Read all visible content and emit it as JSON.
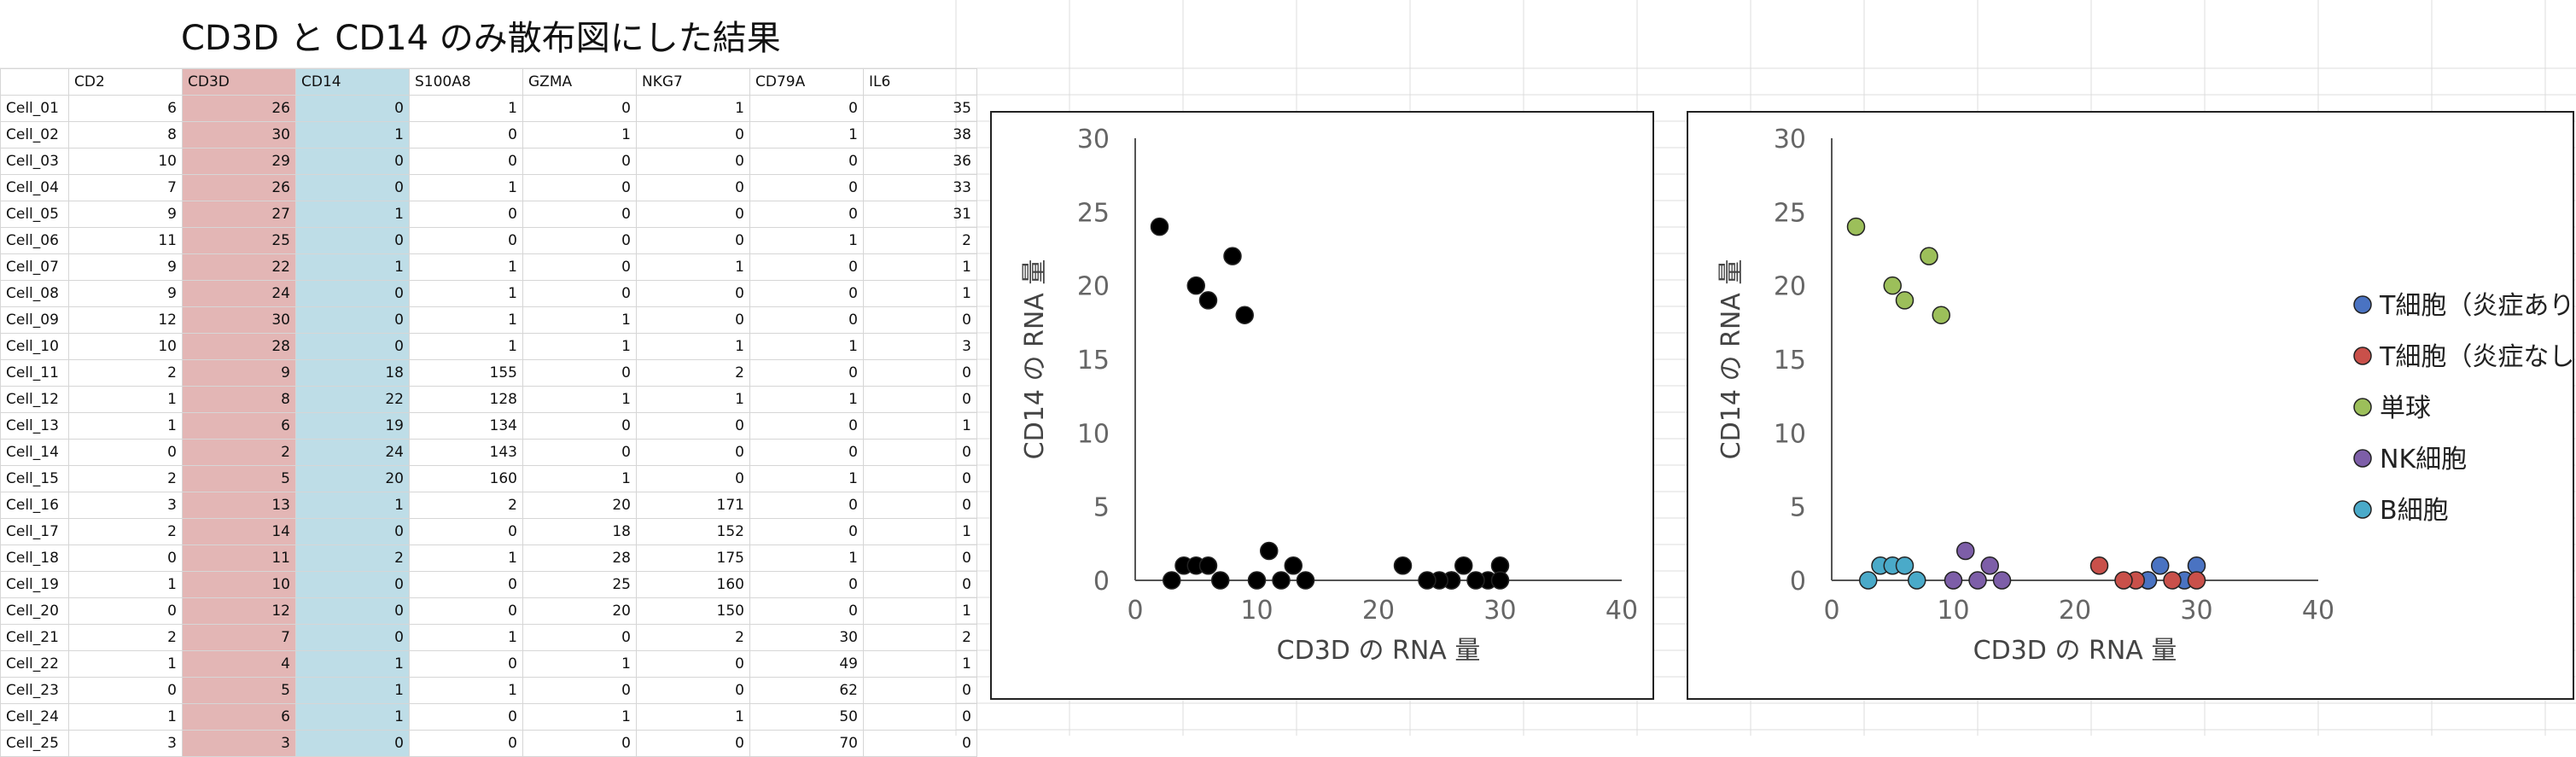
{
  "title": "CD3D と CD14 のみ散布図にした結果",
  "table": {
    "headers": [
      "",
      "CD2",
      "CD3D",
      "CD14",
      "S100A8",
      "GZMA",
      "NKG7",
      "CD79A",
      "IL6"
    ],
    "rows": [
      [
        "Cell_01",
        6,
        26,
        0,
        1,
        0,
        1,
        0,
        35
      ],
      [
        "Cell_02",
        8,
        30,
        1,
        0,
        1,
        0,
        1,
        38
      ],
      [
        "Cell_03",
        10,
        29,
        0,
        0,
        0,
        0,
        0,
        36
      ],
      [
        "Cell_04",
        7,
        26,
        0,
        1,
        0,
        0,
        0,
        33
      ],
      [
        "Cell_05",
        9,
        27,
        1,
        0,
        0,
        0,
        0,
        31
      ],
      [
        "Cell_06",
        11,
        25,
        0,
        0,
        0,
        0,
        1,
        2
      ],
      [
        "Cell_07",
        9,
        22,
        1,
        1,
        0,
        1,
        0,
        1
      ],
      [
        "Cell_08",
        9,
        24,
        0,
        1,
        0,
        0,
        0,
        1
      ],
      [
        "Cell_09",
        12,
        30,
        0,
        1,
        1,
        0,
        0,
        0
      ],
      [
        "Cell_10",
        10,
        28,
        0,
        1,
        1,
        1,
        1,
        3
      ],
      [
        "Cell_11",
        2,
        9,
        18,
        155,
        0,
        2,
        0,
        0
      ],
      [
        "Cell_12",
        1,
        8,
        22,
        128,
        1,
        1,
        1,
        0
      ],
      [
        "Cell_13",
        1,
        6,
        19,
        134,
        0,
        0,
        0,
        1
      ],
      [
        "Cell_14",
        0,
        2,
        24,
        143,
        0,
        0,
        0,
        0
      ],
      [
        "Cell_15",
        2,
        5,
        20,
        160,
        1,
        0,
        1,
        0
      ],
      [
        "Cell_16",
        3,
        13,
        1,
        2,
        20,
        171,
        0,
        0
      ],
      [
        "Cell_17",
        2,
        14,
        0,
        0,
        18,
        152,
        0,
        1
      ],
      [
        "Cell_18",
        0,
        11,
        2,
        1,
        28,
        175,
        1,
        0
      ],
      [
        "Cell_19",
        1,
        10,
        0,
        0,
        25,
        160,
        0,
        0
      ],
      [
        "Cell_20",
        0,
        12,
        0,
        0,
        20,
        150,
        0,
        1
      ],
      [
        "Cell_21",
        2,
        7,
        0,
        1,
        0,
        2,
        30,
        2
      ],
      [
        "Cell_22",
        1,
        4,
        1,
        0,
        1,
        0,
        49,
        1
      ],
      [
        "Cell_23",
        0,
        5,
        1,
        1,
        0,
        0,
        62,
        0
      ],
      [
        "Cell_24",
        1,
        6,
        1,
        0,
        1,
        1,
        50,
        0
      ],
      [
        "Cell_25",
        3,
        3,
        0,
        0,
        0,
        0,
        70,
        0
      ]
    ]
  },
  "colors": {
    "cd3d_column": "#e3b6b5",
    "cd14_column": "#bedde7",
    "point_default": "#000000"
  },
  "chart_data": [
    {
      "type": "scatter",
      "title": "",
      "xlabel": "CD3D の RNA 量",
      "ylabel": "CD14 の RNA 量",
      "xlim": [
        0,
        40
      ],
      "ylim": [
        0,
        30
      ],
      "xticks": [
        0,
        10,
        20,
        30,
        40
      ],
      "yticks": [
        0,
        5,
        10,
        15,
        20,
        25,
        30
      ],
      "grid": false,
      "series": [
        {
          "color": "#000000",
          "points": [
            [
              26,
              0
            ],
            [
              30,
              1
            ],
            [
              29,
              0
            ],
            [
              26,
              0
            ],
            [
              27,
              1
            ],
            [
              25,
              0
            ],
            [
              22,
              1
            ],
            [
              24,
              0
            ],
            [
              30,
              0
            ],
            [
              28,
              0
            ],
            [
              9,
              18
            ],
            [
              8,
              22
            ],
            [
              6,
              19
            ],
            [
              2,
              24
            ],
            [
              5,
              20
            ],
            [
              13,
              1
            ],
            [
              14,
              0
            ],
            [
              11,
              2
            ],
            [
              10,
              0
            ],
            [
              12,
              0
            ],
            [
              7,
              0
            ],
            [
              4,
              1
            ],
            [
              5,
              1
            ],
            [
              6,
              1
            ],
            [
              3,
              0
            ]
          ]
        }
      ]
    },
    {
      "type": "scatter",
      "title": "",
      "xlabel": "CD3D の RNA 量",
      "ylabel": "CD14 の RNA 量",
      "xlim": [
        0,
        40
      ],
      "ylim": [
        0,
        30
      ],
      "xticks": [
        0,
        10,
        20,
        30,
        40
      ],
      "yticks": [
        0,
        5,
        10,
        15,
        20,
        25,
        30
      ],
      "grid": false,
      "legend": "right",
      "series": [
        {
          "name": "T細胞（炎症あり）",
          "color": "#4a73c2",
          "points": [
            [
              26,
              0
            ],
            [
              30,
              1
            ],
            [
              29,
              0
            ],
            [
              26,
              0
            ],
            [
              27,
              1
            ]
          ]
        },
        {
          "name": "T細胞（炎症なし）",
          "color": "#c9504a",
          "points": [
            [
              25,
              0
            ],
            [
              22,
              1
            ],
            [
              24,
              0
            ],
            [
              30,
              0
            ],
            [
              28,
              0
            ]
          ]
        },
        {
          "name": "単球",
          "color": "#9cbf5a",
          "points": [
            [
              9,
              18
            ],
            [
              8,
              22
            ],
            [
              6,
              19
            ],
            [
              2,
              24
            ],
            [
              5,
              20
            ]
          ]
        },
        {
          "name": "NK細胞",
          "color": "#7d5ea8",
          "points": [
            [
              13,
              1
            ],
            [
              14,
              0
            ],
            [
              11,
              2
            ],
            [
              10,
              0
            ],
            [
              12,
              0
            ]
          ]
        },
        {
          "name": "B細胞",
          "color": "#4aaac9",
          "points": [
            [
              7,
              0
            ],
            [
              4,
              1
            ],
            [
              5,
              1
            ],
            [
              6,
              1
            ],
            [
              3,
              0
            ]
          ]
        }
      ]
    }
  ]
}
